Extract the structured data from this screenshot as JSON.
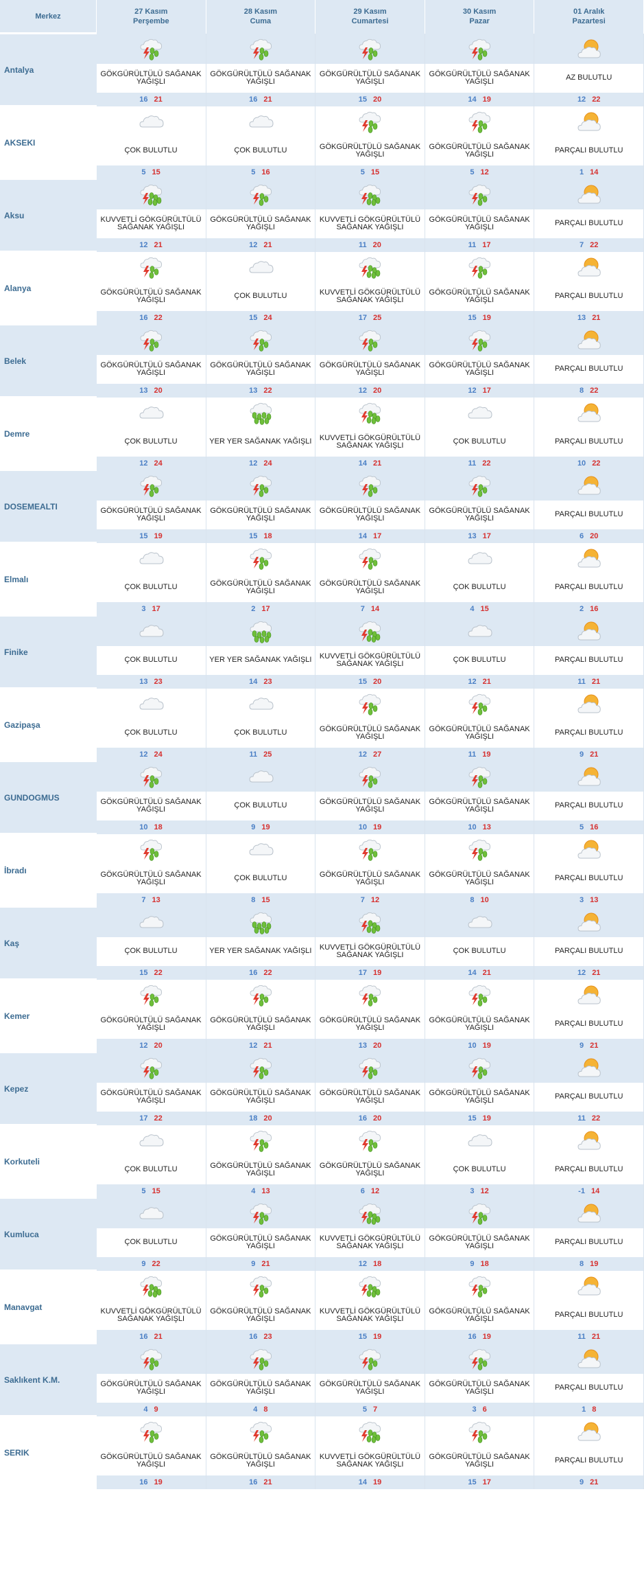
{
  "header": {
    "location_label": "Merkez",
    "days": [
      {
        "date": "27 Kasım",
        "weekday": "Perşembe"
      },
      {
        "date": "28 Kasım",
        "weekday": "Cuma"
      },
      {
        "date": "29 Kasım",
        "weekday": "Cumartesi"
      },
      {
        "date": "30 Kasım",
        "weekday": "Pazar"
      },
      {
        "date": "01 Aralık",
        "weekday": "Pazartesi"
      }
    ]
  },
  "conditions": {
    "gs": {
      "text": "GÖKGÜRÜLTÜLÜ SAĞANAK YAĞIŞLI",
      "icon": "thunderstorm-icon"
    },
    "kgs": {
      "text": "KUVVETLİ GÖKGÜRÜLTÜLÜ SAĞANAK YAĞIŞLI",
      "icon": "heavy-thunderstorm-icon"
    },
    "cb": {
      "text": "ÇOK BULUTLU",
      "icon": "cloud-icon"
    },
    "pb": {
      "text": "PARÇALI BULUTLU",
      "icon": "partly-cloudy-icon"
    },
    "ab": {
      "text": "AZ BULUTLU",
      "icon": "partly-cloudy-icon"
    },
    "yys": {
      "text": "YER YER SAĞANAK YAĞIŞLI",
      "icon": "showers-icon"
    }
  },
  "colors": {
    "header_bg": "#dde8f3",
    "header_text": "#3d6c92",
    "min_temp": "#4a7fc5",
    "max_temp": "#d6302f"
  },
  "rows": [
    {
      "name": "Antalya",
      "forecast": [
        {
          "c": "gs",
          "min": "16",
          "max": "21"
        },
        {
          "c": "gs",
          "min": "16",
          "max": "21"
        },
        {
          "c": "gs",
          "min": "15",
          "max": "20"
        },
        {
          "c": "gs",
          "min": "14",
          "max": "19"
        },
        {
          "c": "ab",
          "min": "12",
          "max": "22"
        }
      ]
    },
    {
      "name": "AKSEKI",
      "forecast": [
        {
          "c": "cb",
          "min": "5",
          "max": "15"
        },
        {
          "c": "cb",
          "min": "5",
          "max": "16"
        },
        {
          "c": "gs",
          "min": "5",
          "max": "15"
        },
        {
          "c": "gs",
          "min": "5",
          "max": "12"
        },
        {
          "c": "pb",
          "min": "1",
          "max": "14"
        }
      ]
    },
    {
      "name": "Aksu",
      "forecast": [
        {
          "c": "kgs",
          "min": "12",
          "max": "21"
        },
        {
          "c": "gs",
          "min": "12",
          "max": "21"
        },
        {
          "c": "kgs",
          "min": "11",
          "max": "20"
        },
        {
          "c": "gs",
          "min": "11",
          "max": "17"
        },
        {
          "c": "pb",
          "min": "7",
          "max": "22"
        }
      ]
    },
    {
      "name": "Alanya",
      "forecast": [
        {
          "c": "gs",
          "min": "16",
          "max": "22"
        },
        {
          "c": "cb",
          "min": "15",
          "max": "24"
        },
        {
          "c": "kgs",
          "min": "17",
          "max": "25"
        },
        {
          "c": "gs",
          "min": "15",
          "max": "19"
        },
        {
          "c": "pb",
          "min": "13",
          "max": "21"
        }
      ]
    },
    {
      "name": "Belek",
      "forecast": [
        {
          "c": "gs",
          "min": "13",
          "max": "20"
        },
        {
          "c": "gs",
          "min": "13",
          "max": "22"
        },
        {
          "c": "gs",
          "min": "12",
          "max": "20"
        },
        {
          "c": "gs",
          "min": "12",
          "max": "17"
        },
        {
          "c": "pb",
          "min": "8",
          "max": "22"
        }
      ]
    },
    {
      "name": "Demre",
      "forecast": [
        {
          "c": "cb",
          "min": "12",
          "max": "24"
        },
        {
          "c": "yys",
          "min": "12",
          "max": "24"
        },
        {
          "c": "kgs",
          "min": "14",
          "max": "21"
        },
        {
          "c": "cb",
          "min": "11",
          "max": "22"
        },
        {
          "c": "pb",
          "min": "10",
          "max": "22"
        }
      ]
    },
    {
      "name": "DOSEMEALTI",
      "forecast": [
        {
          "c": "gs",
          "min": "15",
          "max": "19"
        },
        {
          "c": "gs",
          "min": "15",
          "max": "18"
        },
        {
          "c": "gs",
          "min": "14",
          "max": "17"
        },
        {
          "c": "gs",
          "min": "13",
          "max": "17"
        },
        {
          "c": "pb",
          "min": "6",
          "max": "20"
        }
      ]
    },
    {
      "name": "Elmalı",
      "forecast": [
        {
          "c": "cb",
          "min": "3",
          "max": "17"
        },
        {
          "c": "gs",
          "min": "2",
          "max": "17"
        },
        {
          "c": "gs",
          "min": "7",
          "max": "14"
        },
        {
          "c": "cb",
          "min": "4",
          "max": "15"
        },
        {
          "c": "pb",
          "min": "2",
          "max": "16"
        }
      ]
    },
    {
      "name": "Finike",
      "forecast": [
        {
          "c": "cb",
          "min": "13",
          "max": "23"
        },
        {
          "c": "yys",
          "min": "14",
          "max": "23"
        },
        {
          "c": "kgs",
          "min": "15",
          "max": "20"
        },
        {
          "c": "cb",
          "min": "12",
          "max": "21"
        },
        {
          "c": "pb",
          "min": "11",
          "max": "21"
        }
      ]
    },
    {
      "name": "Gazipaşa",
      "forecast": [
        {
          "c": "cb",
          "min": "12",
          "max": "24"
        },
        {
          "c": "cb",
          "min": "11",
          "max": "25"
        },
        {
          "c": "gs",
          "min": "12",
          "max": "27"
        },
        {
          "c": "gs",
          "min": "11",
          "max": "19"
        },
        {
          "c": "pb",
          "min": "9",
          "max": "21"
        }
      ]
    },
    {
      "name": "GUNDOGMUS",
      "forecast": [
        {
          "c": "gs",
          "min": "10",
          "max": "18"
        },
        {
          "c": "cb",
          "min": "9",
          "max": "19"
        },
        {
          "c": "gs",
          "min": "10",
          "max": "19"
        },
        {
          "c": "gs",
          "min": "10",
          "max": "13"
        },
        {
          "c": "pb",
          "min": "5",
          "max": "16"
        }
      ]
    },
    {
      "name": "İbradı",
      "forecast": [
        {
          "c": "gs",
          "min": "7",
          "max": "13"
        },
        {
          "c": "cb",
          "min": "8",
          "max": "15"
        },
        {
          "c": "gs",
          "min": "7",
          "max": "12"
        },
        {
          "c": "gs",
          "min": "8",
          "max": "10"
        },
        {
          "c": "pb",
          "min": "3",
          "max": "13"
        }
      ]
    },
    {
      "name": "Kaş",
      "forecast": [
        {
          "c": "cb",
          "min": "15",
          "max": "22"
        },
        {
          "c": "yys",
          "min": "16",
          "max": "22"
        },
        {
          "c": "kgs",
          "min": "17",
          "max": "19"
        },
        {
          "c": "cb",
          "min": "14",
          "max": "21"
        },
        {
          "c": "pb",
          "min": "12",
          "max": "21"
        }
      ]
    },
    {
      "name": "Kemer",
      "forecast": [
        {
          "c": "gs",
          "min": "12",
          "max": "20"
        },
        {
          "c": "gs",
          "min": "12",
          "max": "21"
        },
        {
          "c": "gs",
          "min": "13",
          "max": "20"
        },
        {
          "c": "gs",
          "min": "10",
          "max": "19"
        },
        {
          "c": "pb",
          "min": "9",
          "max": "21"
        }
      ]
    },
    {
      "name": "Kepez",
      "forecast": [
        {
          "c": "gs",
          "min": "17",
          "max": "22"
        },
        {
          "c": "gs",
          "min": "18",
          "max": "20"
        },
        {
          "c": "gs",
          "min": "16",
          "max": "20"
        },
        {
          "c": "gs",
          "min": "15",
          "max": "19"
        },
        {
          "c": "pb",
          "min": "11",
          "max": "22"
        }
      ]
    },
    {
      "name": "Korkuteli",
      "forecast": [
        {
          "c": "cb",
          "min": "5",
          "max": "15"
        },
        {
          "c": "gs",
          "min": "4",
          "max": "13"
        },
        {
          "c": "gs",
          "min": "6",
          "max": "12"
        },
        {
          "c": "cb",
          "min": "3",
          "max": "12"
        },
        {
          "c": "pb",
          "min": "-1",
          "max": "14"
        }
      ]
    },
    {
      "name": "Kumluca",
      "forecast": [
        {
          "c": "cb",
          "min": "9",
          "max": "22"
        },
        {
          "c": "gs",
          "min": "9",
          "max": "21"
        },
        {
          "c": "kgs",
          "min": "12",
          "max": "18"
        },
        {
          "c": "gs",
          "min": "9",
          "max": "18"
        },
        {
          "c": "pb",
          "min": "8",
          "max": "19"
        }
      ]
    },
    {
      "name": "Manavgat",
      "forecast": [
        {
          "c": "kgs",
          "min": "16",
          "max": "21"
        },
        {
          "c": "gs",
          "min": "16",
          "max": "23"
        },
        {
          "c": "kgs",
          "min": "15",
          "max": "19"
        },
        {
          "c": "gs",
          "min": "16",
          "max": "19"
        },
        {
          "c": "pb",
          "min": "11",
          "max": "21"
        }
      ]
    },
    {
      "name": "Saklıkent K.M.",
      "forecast": [
        {
          "c": "gs",
          "min": "4",
          "max": "9"
        },
        {
          "c": "gs",
          "min": "4",
          "max": "8"
        },
        {
          "c": "gs",
          "min": "5",
          "max": "7"
        },
        {
          "c": "gs",
          "min": "3",
          "max": "6"
        },
        {
          "c": "pb",
          "min": "1",
          "max": "8"
        }
      ]
    },
    {
      "name": "SERIK",
      "forecast": [
        {
          "c": "gs",
          "min": "16",
          "max": "19"
        },
        {
          "c": "gs",
          "min": "16",
          "max": "21"
        },
        {
          "c": "kgs",
          "min": "14",
          "max": "19"
        },
        {
          "c": "gs",
          "min": "15",
          "max": "17"
        },
        {
          "c": "pb",
          "min": "9",
          "max": "21"
        }
      ]
    }
  ]
}
